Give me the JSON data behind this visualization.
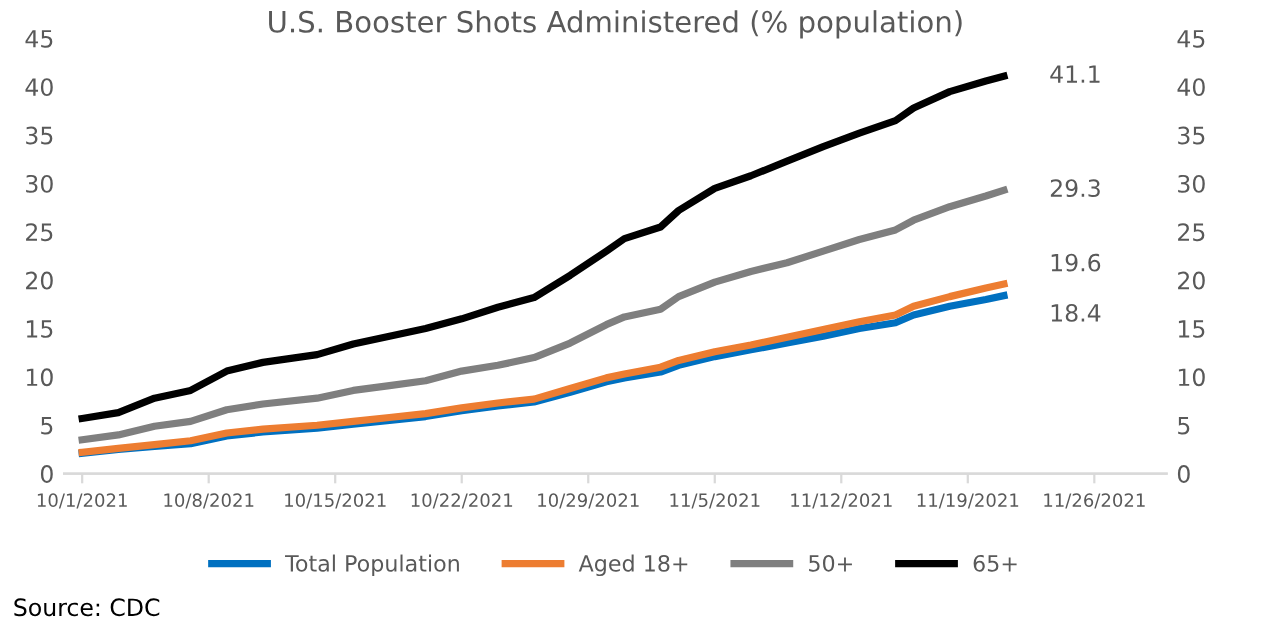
{
  "chart_data": {
    "type": "line",
    "title": "U.S. Booster Shots Administered (% population)",
    "x": [
      "2021-10-01",
      "2021-10-03",
      "2021-10-05",
      "2021-10-07",
      "2021-10-09",
      "2021-10-11",
      "2021-10-14",
      "2021-10-16",
      "2021-10-18",
      "2021-10-20",
      "2021-10-22",
      "2021-10-24",
      "2021-10-26",
      "2021-10-28",
      "2021-10-30",
      "2021-10-31",
      "2021-11-02",
      "2021-11-03",
      "2021-11-05",
      "2021-11-07",
      "2021-11-09",
      "2021-11-11",
      "2021-11-13",
      "2021-11-15",
      "2021-11-16",
      "2021-11-18",
      "2021-11-20",
      "2021-11-21"
    ],
    "series": [
      {
        "name": "Total Population",
        "color": "#0070c0",
        "values": [
          2.1,
          2.5,
          2.8,
          3.1,
          3.9,
          4.3,
          4.7,
          5.1,
          5.5,
          5.9,
          6.5,
          7.0,
          7.4,
          8.4,
          9.5,
          9.9,
          10.5,
          11.2,
          12.1,
          12.8,
          13.5,
          14.2,
          15.0,
          15.6,
          16.4,
          17.3,
          18.0,
          18.4
        ]
      },
      {
        "name": "Aged 18+",
        "color": "#ed7d31",
        "values": [
          2.2,
          2.6,
          3.0,
          3.4,
          4.2,
          4.6,
          5.0,
          5.4,
          5.8,
          6.2,
          6.8,
          7.3,
          7.7,
          8.8,
          9.9,
          10.3,
          11.0,
          11.7,
          12.6,
          13.3,
          14.1,
          14.9,
          15.7,
          16.4,
          17.3,
          18.3,
          19.2,
          19.6
        ]
      },
      {
        "name": "50+",
        "color": "#7f7f7f",
        "values": [
          3.5,
          4.0,
          4.9,
          5.4,
          6.6,
          7.2,
          7.8,
          8.6,
          9.1,
          9.6,
          10.6,
          11.2,
          12.0,
          13.5,
          15.4,
          16.2,
          17.0,
          18.3,
          19.8,
          20.9,
          21.8,
          23.0,
          24.2,
          25.2,
          26.2,
          27.6,
          28.7,
          29.3
        ]
      },
      {
        "name": "65+",
        "color": "#000000",
        "values": [
          5.7,
          6.3,
          7.8,
          8.6,
          10.6,
          11.5,
          12.3,
          13.4,
          14.2,
          15.0,
          16.0,
          17.2,
          18.2,
          20.5,
          23.0,
          24.3,
          25.5,
          27.2,
          29.5,
          30.8,
          32.3,
          33.8,
          35.2,
          36.5,
          37.8,
          39.5,
          40.6,
          41.1
        ]
      }
    ],
    "xlim": [
      "2021-09-30",
      "2021-11-30"
    ],
    "xticks": [
      {
        "value": "2021-10-01",
        "label": "10/1/2021"
      },
      {
        "value": "2021-10-08",
        "label": "10/8/2021"
      },
      {
        "value": "2021-10-15",
        "label": "10/15/2021"
      },
      {
        "value": "2021-10-22",
        "label": "10/22/2021"
      },
      {
        "value": "2021-10-29",
        "label": "10/29/2021"
      },
      {
        "value": "2021-11-05",
        "label": "11/5/2021"
      },
      {
        "value": "2021-11-12",
        "label": "11/12/2021"
      },
      {
        "value": "2021-11-19",
        "label": "11/19/2021"
      },
      {
        "value": "2021-11-26",
        "label": "11/26/2021"
      }
    ],
    "ylim": [
      0,
      45
    ],
    "yticks": [
      0,
      5,
      10,
      15,
      20,
      25,
      30,
      35,
      40,
      45
    ],
    "y2lim": [
      0,
      45
    ],
    "y2ticks": [
      0,
      5,
      10,
      15,
      20,
      25,
      30,
      35,
      40,
      45
    ],
    "annotations": [
      {
        "text": "41.1",
        "x": "2021-11-21",
        "y": 41.1
      },
      {
        "text": "29.3",
        "x": "2021-11-21",
        "y": 29.3
      },
      {
        "text": "19.6",
        "x": "2021-11-21",
        "y": 19.6
      },
      {
        "text": "18.4",
        "x": "2021-11-21",
        "y": 18.4
      },
      "Source: CDC"
    ],
    "grid": false,
    "legend": "bottom",
    "marker": "none",
    "line_style": "solid"
  }
}
